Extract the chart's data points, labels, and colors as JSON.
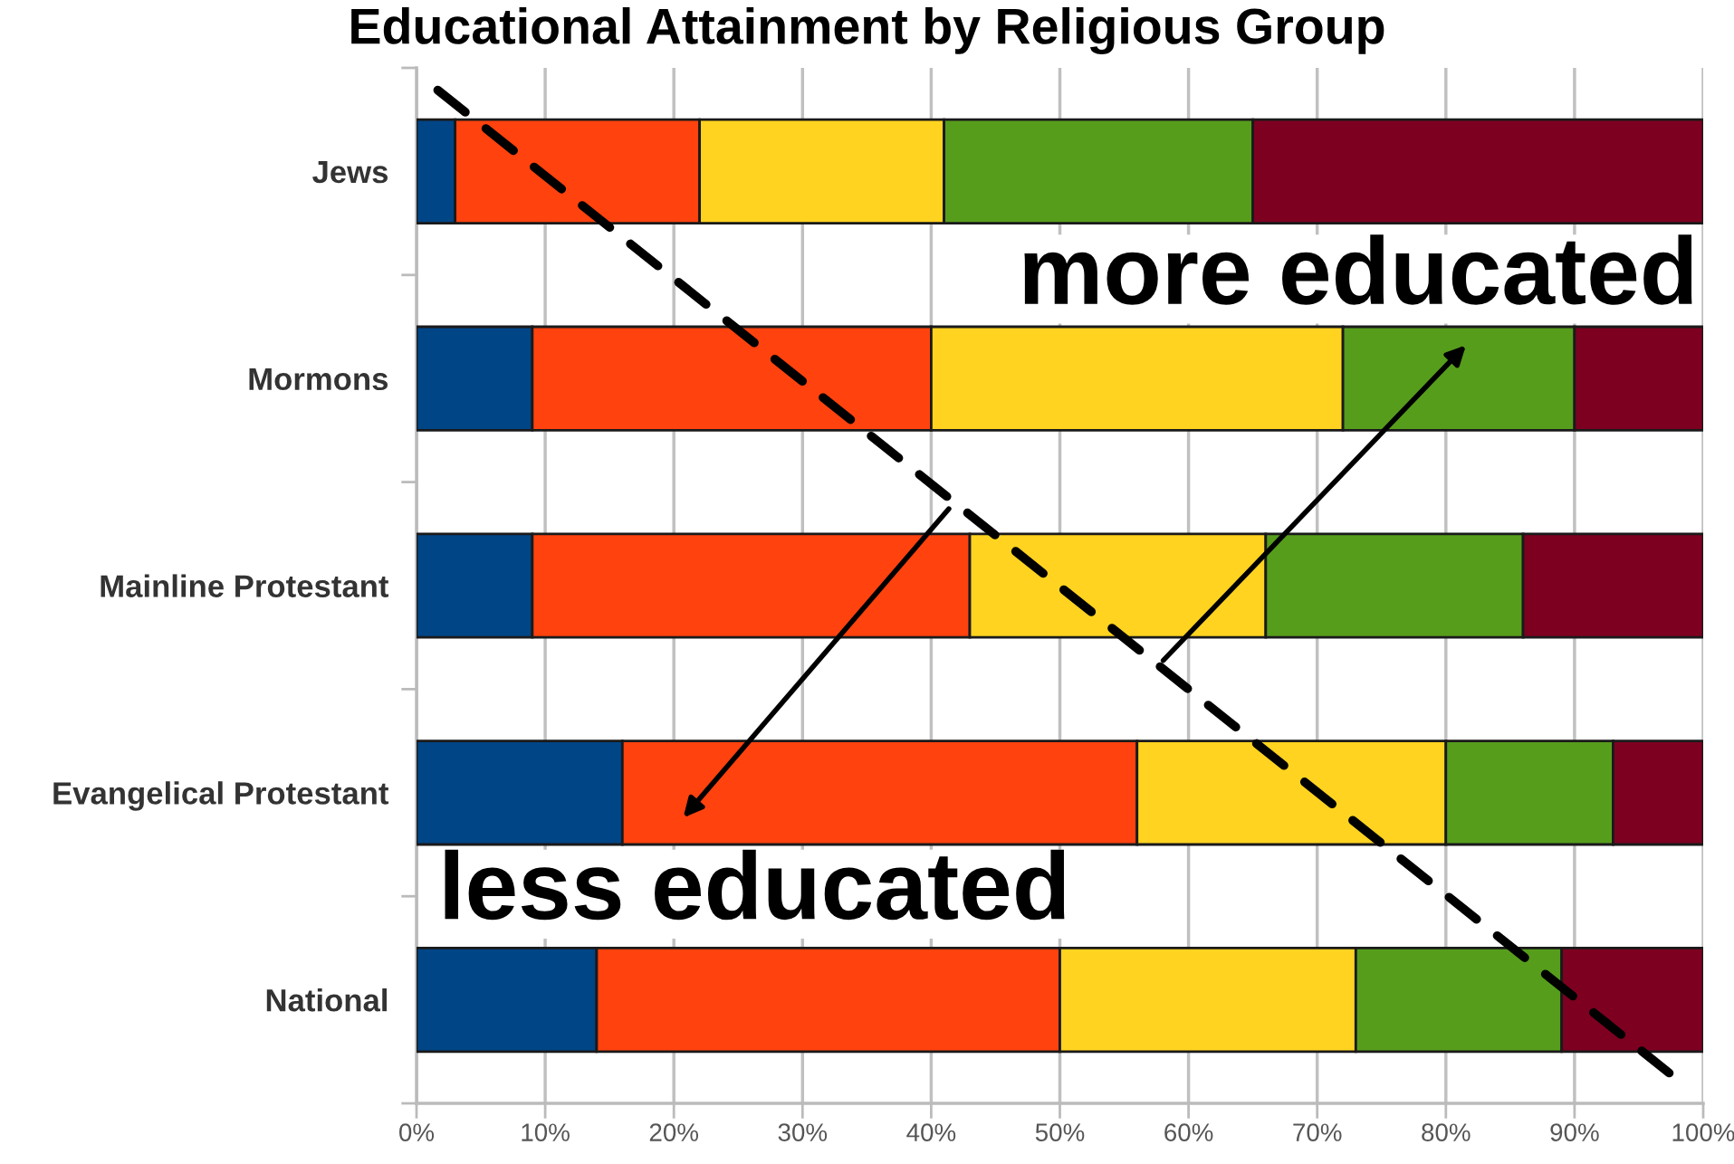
{
  "chart_data": {
    "type": "bar",
    "orientation": "horizontal",
    "stacked": true,
    "title": "Educational Attainment by Religious Group",
    "categories": [
      "Jews",
      "Mormons",
      "Mainline Protestant",
      "Evangelical Protestant",
      "National"
    ],
    "series": [
      {
        "color": "#004586",
        "values": [
          3,
          9,
          9,
          16,
          14
        ]
      },
      {
        "color": "#ff420e",
        "values": [
          19,
          31,
          34,
          40,
          36
        ]
      },
      {
        "color": "#ffd320",
        "values": [
          19,
          32,
          23,
          24,
          23
        ]
      },
      {
        "color": "#579d1c",
        "values": [
          24,
          18,
          20,
          13,
          16
        ]
      },
      {
        "color": "#7e0021",
        "values": [
          35,
          10,
          14,
          7,
          11
        ]
      }
    ],
    "xlim": [
      0,
      100
    ],
    "xticks": [
      {
        "value": 0,
        "label": "0%"
      },
      {
        "value": 10,
        "label": "10%"
      },
      {
        "value": 20,
        "label": "20%"
      },
      {
        "value": 30,
        "label": "30%"
      },
      {
        "value": 40,
        "label": "40%"
      },
      {
        "value": 50,
        "label": "50%"
      },
      {
        "value": 60,
        "label": "60%"
      },
      {
        "value": 70,
        "label": "70%"
      },
      {
        "value": 80,
        "label": "80%"
      },
      {
        "value": 90,
        "label": "90%"
      },
      {
        "value": 100,
        "label": "100%"
      }
    ],
    "grid": "x",
    "legend": false,
    "annotations": [
      "more educated",
      "less educated"
    ]
  }
}
